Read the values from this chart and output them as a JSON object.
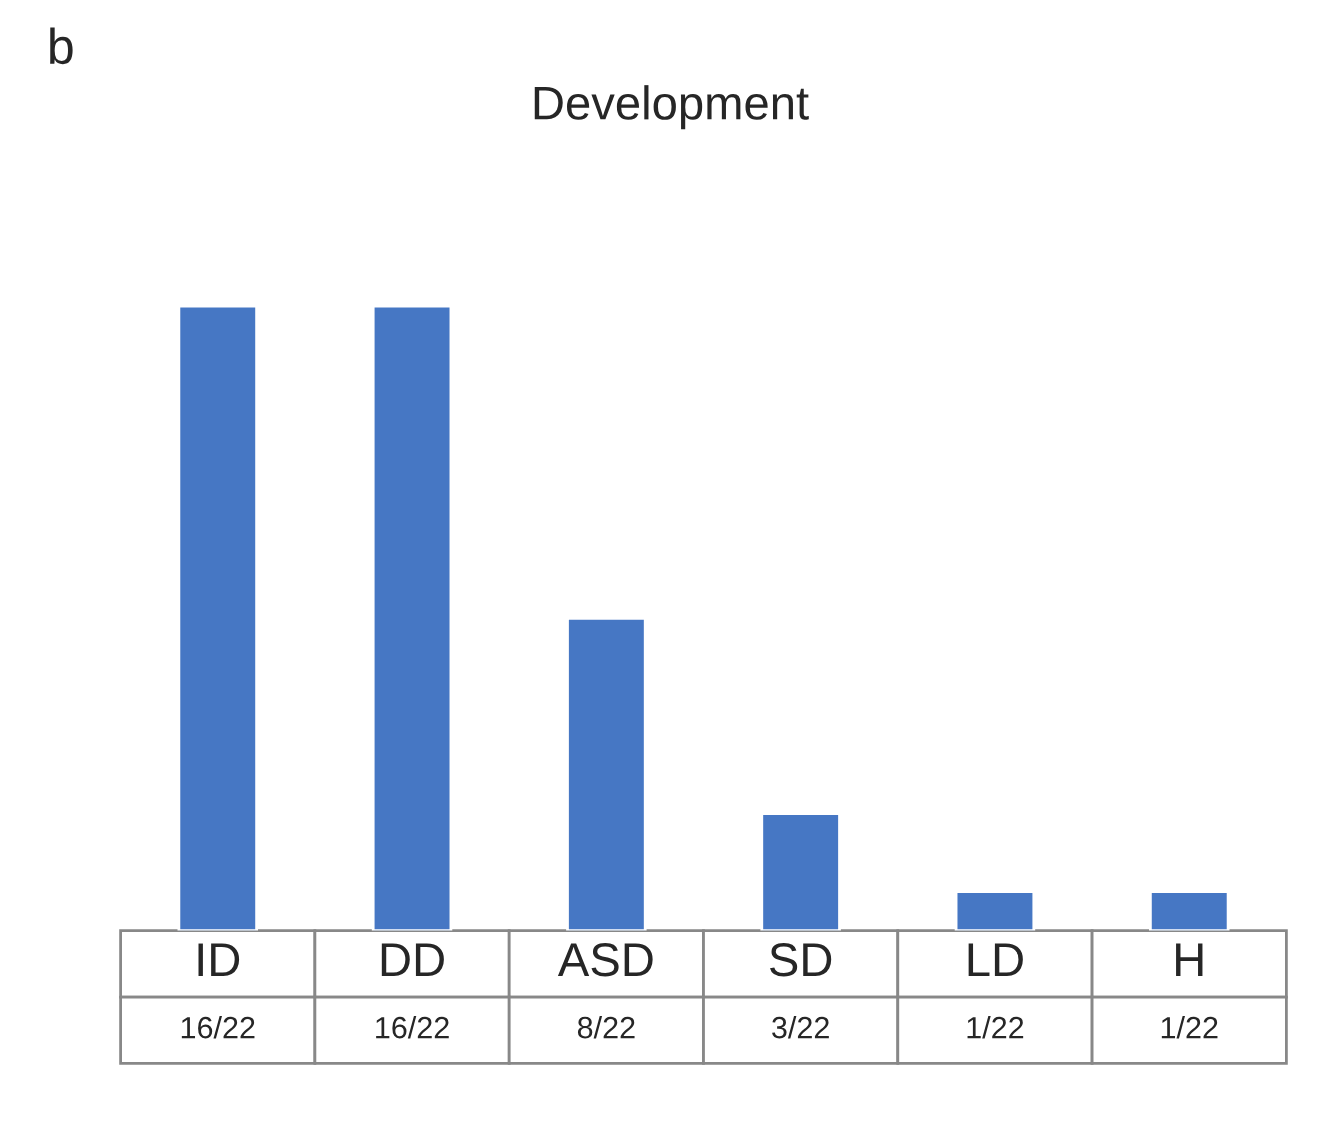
{
  "chart_data": {
    "type": "bar",
    "title": "Development",
    "annotations": [
      "b"
    ],
    "categories": [
      "ID",
      "DD",
      "ASD",
      "SD",
      "LD",
      "H"
    ],
    "values": [
      16,
      16,
      8,
      3,
      1,
      1
    ],
    "value_labels": [
      "16/22",
      "16/22",
      "8/22",
      "3/22",
      "1/22",
      "1/22"
    ],
    "color": "#4677c4"
  }
}
